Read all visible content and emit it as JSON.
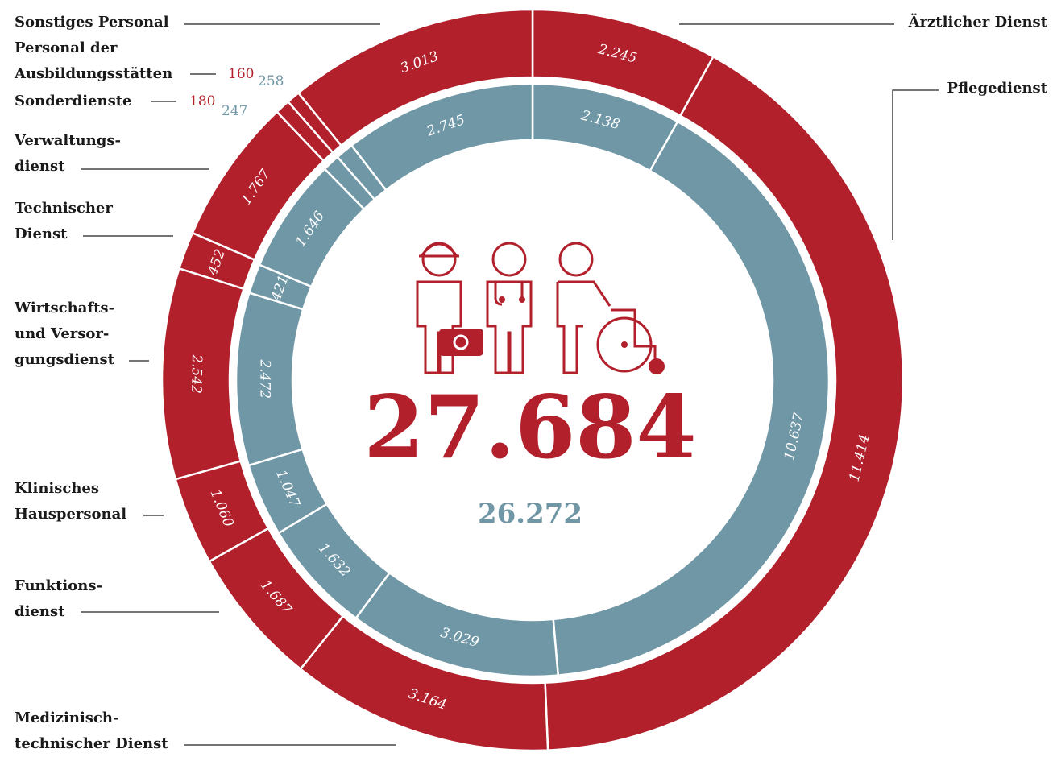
{
  "chart_data": {
    "type": "donut",
    "categories": [
      "Ärztlicher Dienst",
      "Pflegedienst",
      "Medizinisch-\ntechnischer Dienst",
      "Funktions-\ndienst",
      "Klinisches\nHauspersonal",
      "Wirtschafts-\nund Versor-\ngungsdienst",
      "Technischer\nDienst",
      "Verwaltungs-\ndienst",
      "Sonderdienste",
      "Personal der\nAusbildungsstätten",
      "Sonstiges Personal"
    ],
    "series": [
      {
        "color": "#b2202c",
        "values": [
          2245,
          11414,
          3164,
          1687,
          1060,
          2542,
          452,
          1767,
          180,
          160,
          3013
        ],
        "value_labels": [
          "2.245",
          "11.414",
          "3.164",
          "1.687",
          "1.060",
          "2.542",
          "452",
          "1.767",
          "180",
          "160",
          "3.013"
        ],
        "total": 27684,
        "total_label": "27.684"
      },
      {
        "color": "#7097a6",
        "values": [
          2138,
          10637,
          3029,
          1632,
          1047,
          2472,
          421,
          1646,
          247,
          258,
          2745
        ],
        "value_labels": [
          "2.138",
          "10.637",
          "3.029",
          "1.632",
          "1.047",
          "2.472",
          "421",
          "1.646",
          "247",
          "258",
          "2.745"
        ],
        "total": 26272,
        "total_label": "26.272"
      }
    ]
  }
}
